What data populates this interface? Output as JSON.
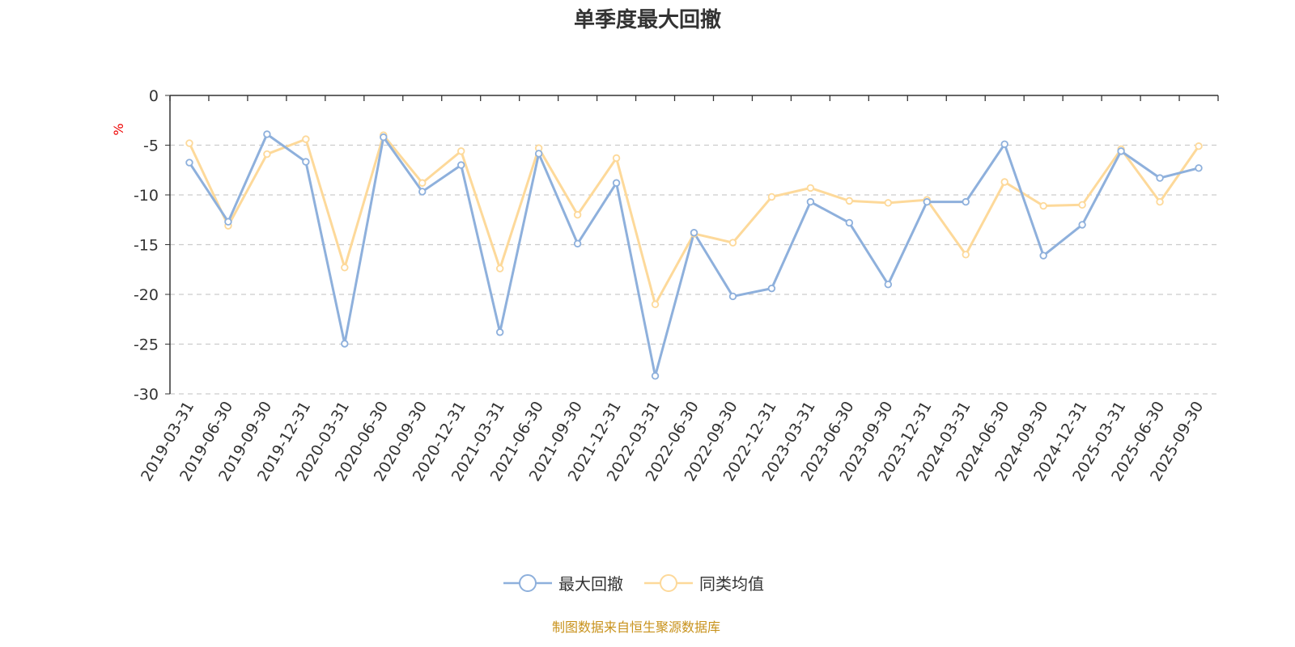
{
  "chart_data": {
    "type": "line",
    "title": "单季度最大回撤",
    "ylabel": "%",
    "xlabel": "",
    "ylim": [
      -30,
      0
    ],
    "yticks": [
      0,
      -5,
      -10,
      -15,
      -20,
      -25,
      -30
    ],
    "grid": true,
    "legend_position": "bottom-center",
    "categories": [
      "2019-03-31",
      "2019-06-30",
      "2019-09-30",
      "2019-12-31",
      "2020-03-31",
      "2020-06-30",
      "2020-09-30",
      "2020-12-31",
      "2021-03-31",
      "2021-06-30",
      "2021-09-30",
      "2021-12-31",
      "2022-03-31",
      "2022-06-30",
      "2022-09-30",
      "2022-12-31",
      "2023-03-31",
      "2023-06-30",
      "2023-09-30",
      "2023-12-31",
      "2024-03-31",
      "2024-06-30",
      "2024-09-30",
      "2024-12-31",
      "2025-03-31",
      "2025-06-30",
      "2025-09-30"
    ],
    "series": [
      {
        "name": "最大回撤",
        "color": "#8eb0dc",
        "values": [
          -6.75,
          -12.7,
          -3.9,
          -6.67,
          -24.96,
          -4.2,
          -9.67,
          -7.0,
          -23.8,
          -5.85,
          -14.9,
          -8.8,
          -28.2,
          -13.8,
          -20.2,
          -19.4,
          -10.7,
          -12.8,
          -19.0,
          -10.7,
          -10.7,
          -4.9,
          -16.1,
          -13.0,
          -5.6,
          -8.3,
          -7.3
        ]
      },
      {
        "name": "同类均值",
        "color": "#fdd99a",
        "values": [
          -4.8,
          -13.1,
          -5.9,
          -4.4,
          -17.3,
          -4.0,
          -8.8,
          -5.6,
          -17.4,
          -5.3,
          -12.0,
          -6.3,
          -21.0,
          -13.9,
          -14.8,
          -10.2,
          -9.3,
          -10.6,
          -10.8,
          -10.5,
          -16.0,
          -8.7,
          -11.1,
          -11.0,
          -5.4,
          -10.7,
          -5.1
        ]
      }
    ]
  },
  "footer": "制图数据来自恒生聚源数据库"
}
